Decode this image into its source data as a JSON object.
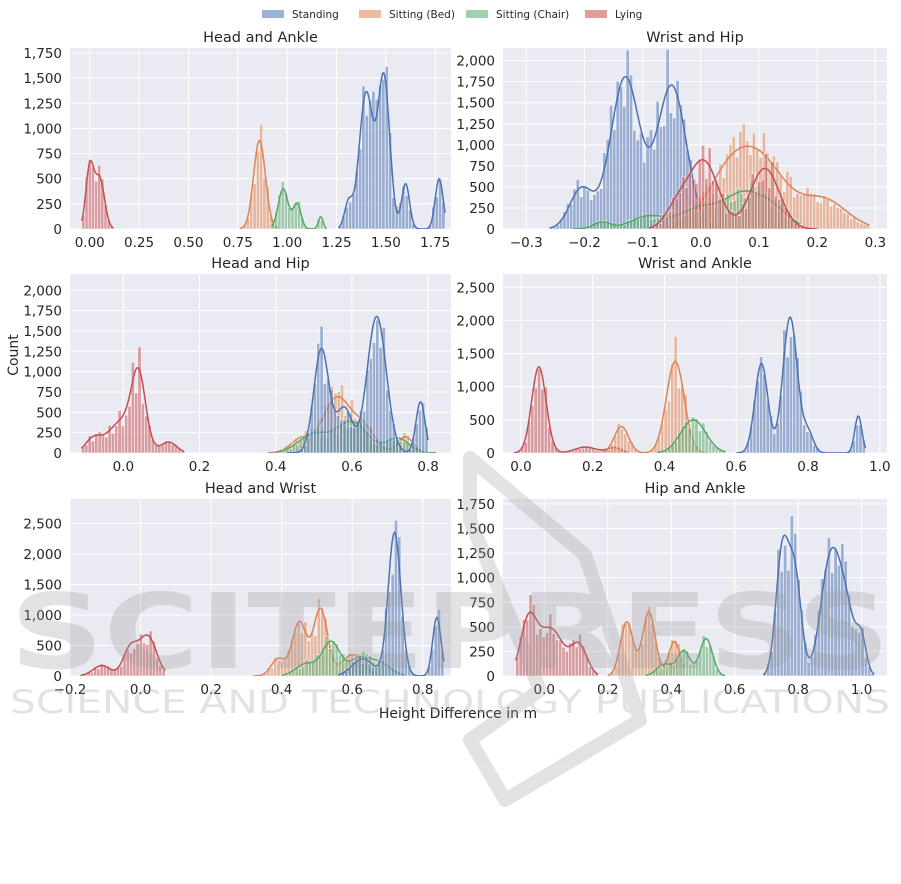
{
  "figure": {
    "xlabel": "Height Difference in m",
    "ylabel": "Count",
    "legend_position": "top-center",
    "watermark_main": "SCITEPRESS",
    "watermark_sub": "SCIENCE AND TECHNOLOGY PUBLICATIONS"
  },
  "legend": [
    {
      "name": "Standing",
      "color": "#4c72b0"
    },
    {
      "name": "Sitting (Bed)",
      "color": "#dd8452"
    },
    {
      "name": "Sitting (Chair)",
      "color": "#55a868"
    },
    {
      "name": "Lying",
      "color": "#c44e52"
    }
  ],
  "chart_data": [
    {
      "type": "histogram-kde",
      "title": "Head and Ankle",
      "xlim": [
        -0.1,
        1.83
      ],
      "ylim": [
        0,
        1800
      ],
      "xticks": [
        0.0,
        0.25,
        0.5,
        0.75,
        1.0,
        1.25,
        1.5,
        1.75
      ],
      "xtick_labels": [
        "0.00",
        "0.25",
        "0.50",
        "0.75",
        "1.00",
        "1.25",
        "1.50",
        "1.75"
      ],
      "yticks": [
        0,
        250,
        500,
        750,
        1000,
        1250,
        1500,
        1750
      ],
      "ytick_labels": [
        "0",
        "250",
        "500",
        "750",
        "1,000",
        "1,250",
        "1,500",
        "1,750"
      ],
      "grid": true,
      "series": [
        {
          "name": "Lying",
          "range": [
            -0.04,
            0.12
          ],
          "peaks": [
            [
              0.0,
              600,
              0.02
            ],
            [
              0.05,
              500,
              0.025
            ]
          ]
        },
        {
          "name": "Sitting (Bed)",
          "range": [
            0.76,
            0.96
          ],
          "peaks": [
            [
              0.86,
              880,
              0.03
            ]
          ]
        },
        {
          "name": "Sitting (Chair)",
          "range": [
            0.92,
            1.2
          ],
          "peaks": [
            [
              0.98,
              400,
              0.025
            ],
            [
              1.05,
              250,
              0.02
            ],
            [
              1.17,
              120,
              0.012
            ]
          ]
        },
        {
          "name": "Standing",
          "range": [
            1.26,
            1.8
          ],
          "peaks": [
            [
              1.31,
              250,
              0.02
            ],
            [
              1.4,
              1350,
              0.035
            ],
            [
              1.49,
              1500,
              0.03
            ],
            [
              1.6,
              450,
              0.02
            ],
            [
              1.77,
              500,
              0.02
            ]
          ]
        }
      ]
    },
    {
      "type": "histogram-kde",
      "title": "Wrist and Hip",
      "xlim": [
        -0.34,
        0.32
      ],
      "ylim": [
        0,
        2150
      ],
      "xticks": [
        -0.3,
        -0.2,
        -0.1,
        0.0,
        0.1,
        0.2,
        0.3
      ],
      "xtick_labels": [
        "−0.3",
        "−0.2",
        "−0.1",
        "0.0",
        "0.1",
        "0.2",
        "0.3"
      ],
      "yticks": [
        0,
        250,
        500,
        750,
        1000,
        1250,
        1500,
        1750,
        2000
      ],
      "ytick_labels": [
        "0",
        "250",
        "500",
        "750",
        "1,000",
        "1,250",
        "1,500",
        "1,750",
        "2,000"
      ],
      "grid": true,
      "series": [
        {
          "name": "Standing",
          "range": [
            -0.26,
            0.06
          ],
          "peaks": [
            [
              -0.205,
              480,
              0.02
            ],
            [
              -0.13,
              1800,
              0.025
            ],
            [
              -0.05,
              1700,
              0.025
            ]
          ]
        },
        {
          "name": "Sitting (Bed)",
          "range": [
            -0.05,
            0.29
          ],
          "peaks": [
            [
              0.05,
              650,
              0.04
            ],
            [
              0.11,
              650,
              0.04
            ],
            [
              0.21,
              350,
              0.04
            ]
          ]
        },
        {
          "name": "Sitting (Chair)",
          "range": [
            -0.22,
            0.17
          ],
          "peaks": [
            [
              -0.17,
              80,
              0.015
            ],
            [
              -0.09,
              150,
              0.03
            ],
            [
              0.0,
              250,
              0.035
            ],
            [
              0.07,
              350,
              0.03
            ],
            [
              0.12,
              250,
              0.03
            ]
          ]
        },
        {
          "name": "Lying",
          "range": [
            -0.09,
            0.2
          ],
          "peaks": [
            [
              -0.04,
              260,
              0.02
            ],
            [
              0.005,
              800,
              0.025
            ],
            [
              0.11,
              720,
              0.025
            ]
          ]
        }
      ]
    },
    {
      "type": "histogram-kde",
      "title": "Head and Hip",
      "xlim": [
        -0.14,
        0.86
      ],
      "ylim": [
        0,
        2200
      ],
      "xticks": [
        0.0,
        0.2,
        0.4,
        0.6,
        0.8
      ],
      "xtick_labels": [
        "0.0",
        "0.2",
        "0.4",
        "0.6",
        "0.8"
      ],
      "yticks": [
        0,
        250,
        500,
        750,
        1000,
        1250,
        1500,
        1750,
        2000
      ],
      "ytick_labels": [
        "0",
        "250",
        "500",
        "750",
        "1,000",
        "1,250",
        "1,500",
        "1,750",
        "2,000"
      ],
      "grid": true,
      "series": [
        {
          "name": "Lying",
          "range": [
            -0.11,
            0.16
          ],
          "peaks": [
            [
              -0.08,
              150,
              0.02
            ],
            [
              0.0,
              400,
              0.04
            ],
            [
              0.04,
              800,
              0.018
            ],
            [
              0.12,
              130,
              0.02
            ]
          ]
        },
        {
          "name": "Sitting (Bed)",
          "range": [
            0.38,
            0.82
          ],
          "peaks": [
            [
              0.47,
              180,
              0.03
            ],
            [
              0.56,
              670,
              0.035
            ],
            [
              0.63,
              300,
              0.03
            ],
            [
              0.74,
              200,
              0.02
            ]
          ]
        },
        {
          "name": "Sitting (Chair)",
          "range": [
            0.4,
            0.82
          ],
          "peaks": [
            [
              0.5,
              230,
              0.04
            ],
            [
              0.6,
              380,
              0.04
            ],
            [
              0.72,
              180,
              0.03
            ]
          ]
        },
        {
          "name": "Standing",
          "range": [
            0.43,
            0.8
          ],
          "peaks": [
            [
              0.52,
              1280,
              0.02
            ],
            [
              0.58,
              550,
              0.02
            ],
            [
              0.665,
              1680,
              0.025
            ],
            [
              0.78,
              630,
              0.012
            ]
          ]
        }
      ]
    },
    {
      "type": "histogram-kde",
      "title": "Wrist and Ankle",
      "xlim": [
        -0.05,
        1.02
      ],
      "ylim": [
        0,
        2700
      ],
      "xticks": [
        0.0,
        0.2,
        0.4,
        0.6,
        0.8,
        1.0
      ],
      "xtick_labels": [
        "0.0",
        "0.2",
        "0.4",
        "0.6",
        "0.8",
        "1.0"
      ],
      "yticks": [
        0,
        500,
        1000,
        1500,
        2000,
        2500
      ],
      "ytick_labels": [
        "0",
        "500",
        "1,000",
        "1,500",
        "2,000",
        "2,500"
      ],
      "grid": true,
      "series": [
        {
          "name": "Lying",
          "range": [
            -0.02,
            0.3
          ],
          "peaks": [
            [
              0.05,
              1300,
              0.02
            ],
            [
              0.18,
              90,
              0.03
            ],
            [
              0.26,
              80,
              0.02
            ]
          ]
        },
        {
          "name": "Sitting (Bed)",
          "range": [
            0.23,
            0.52
          ],
          "peaks": [
            [
              0.28,
              400,
              0.02
            ],
            [
              0.43,
              1380,
              0.025
            ]
          ]
        },
        {
          "name": "Sitting (Chair)",
          "range": [
            0.38,
            0.57
          ],
          "peaks": [
            [
              0.48,
              500,
              0.035
            ]
          ]
        },
        {
          "name": "Standing",
          "range": [
            0.6,
            0.96
          ],
          "peaks": [
            [
              0.67,
              1350,
              0.018
            ],
            [
              0.75,
              2050,
              0.02
            ],
            [
              0.8,
              300,
              0.015
            ],
            [
              0.94,
              560,
              0.01
            ]
          ]
        }
      ]
    },
    {
      "type": "histogram-kde",
      "title": "Head and Wrist",
      "xlim": [
        -0.2,
        0.88
      ],
      "ylim": [
        0,
        2900
      ],
      "xticks": [
        -0.2,
        0.0,
        0.2,
        0.4,
        0.6,
        0.8
      ],
      "xtick_labels": [
        "−0.2",
        "0.0",
        "0.2",
        "0.4",
        "0.6",
        "0.8"
      ],
      "yticks": [
        0,
        500,
        1000,
        1500,
        2000,
        2500
      ],
      "ytick_labels": [
        "0",
        "500",
        "1,000",
        "1,500",
        "2,000",
        "2,500"
      ],
      "grid": true,
      "series": [
        {
          "name": "Lying",
          "range": [
            -0.17,
            0.07
          ],
          "peaks": [
            [
              -0.11,
              170,
              0.025
            ],
            [
              -0.03,
              430,
              0.02
            ],
            [
              0.02,
              650,
              0.025
            ]
          ]
        },
        {
          "name": "Sitting (Bed)",
          "range": [
            0.32,
            0.7
          ],
          "peaks": [
            [
              0.39,
              280,
              0.02
            ],
            [
              0.45,
              880,
              0.02
            ],
            [
              0.51,
              1100,
              0.02
            ],
            [
              0.6,
              350,
              0.03
            ]
          ]
        },
        {
          "name": "Sitting (Chair)",
          "range": [
            0.4,
            0.75
          ],
          "peaks": [
            [
              0.47,
              200,
              0.03
            ],
            [
              0.54,
              550,
              0.025
            ],
            [
              0.62,
              280,
              0.03
            ],
            [
              0.68,
              200,
              0.03
            ]
          ]
        },
        {
          "name": "Standing",
          "range": [
            0.56,
            0.86
          ],
          "peaks": [
            [
              0.63,
              280,
              0.03
            ],
            [
              0.72,
              2350,
              0.018
            ],
            [
              0.84,
              960,
              0.012
            ]
          ]
        }
      ]
    },
    {
      "type": "histogram-kde",
      "title": "Hip and Ankle",
      "xlim": [
        -0.13,
        1.08
      ],
      "ylim": [
        0,
        1800
      ],
      "xticks": [
        0.0,
        0.2,
        0.4,
        0.6,
        0.8,
        1.0
      ],
      "xtick_labels": [
        "0.0",
        "0.2",
        "0.4",
        "0.6",
        "0.8",
        "1.0"
      ],
      "yticks": [
        0,
        250,
        500,
        750,
        1000,
        1250,
        1500,
        1750
      ],
      "ytick_labels": [
        "0",
        "250",
        "500",
        "750",
        "1,000",
        "1,250",
        "1,500",
        "1,750"
      ],
      "grid": true,
      "series": [
        {
          "name": "Lying",
          "range": [
            -0.09,
            0.17
          ],
          "peaks": [
            [
              -0.05,
              530,
              0.025
            ],
            [
              0.02,
              480,
              0.04
            ],
            [
              0.11,
              300,
              0.025
            ]
          ]
        },
        {
          "name": "Sitting (Bed)",
          "range": [
            0.2,
            0.44
          ],
          "peaks": [
            [
              0.26,
              550,
              0.02
            ],
            [
              0.33,
              650,
              0.02
            ],
            [
              0.41,
              350,
              0.018
            ]
          ]
        },
        {
          "name": "Sitting (Chair)",
          "range": [
            0.32,
            0.57
          ],
          "peaks": [
            [
              0.38,
              120,
              0.025
            ],
            [
              0.44,
              250,
              0.02
            ],
            [
              0.51,
              380,
              0.02
            ]
          ]
        },
        {
          "name": "Standing",
          "range": [
            0.69,
            1.04
          ],
          "peaks": [
            [
              0.75,
              1250,
              0.02
            ],
            [
              0.79,
              1000,
              0.02
            ],
            [
              0.9,
              1100,
              0.03
            ],
            [
              0.95,
              650,
              0.03
            ],
            [
              1.0,
              300,
              0.015
            ]
          ]
        }
      ]
    }
  ]
}
